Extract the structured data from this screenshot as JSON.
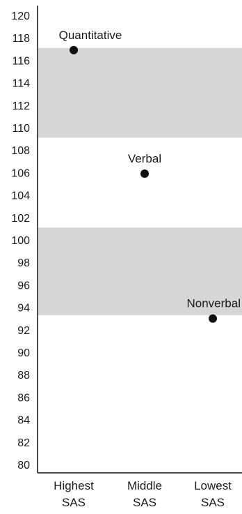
{
  "chart_data": {
    "type": "scatter",
    "title": "",
    "xlabel": "",
    "ylabel": "",
    "ylim": [
      80,
      120
    ],
    "yticks": [
      80,
      82,
      84,
      86,
      88,
      90,
      92,
      94,
      96,
      98,
      100,
      102,
      104,
      106,
      108,
      110,
      112,
      114,
      116,
      118,
      120
    ],
    "categories": [
      [
        "Highest",
        "SAS"
      ],
      [
        "Middle",
        "SAS"
      ],
      [
        "Lowest",
        "SAS"
      ]
    ],
    "points": [
      {
        "label": "Quantitative",
        "category_index": 0,
        "y": 116.9
      },
      {
        "label": "Verbal",
        "category_index": 1,
        "y": 105.9
      },
      {
        "label": "Nonverbal",
        "category_index": 2,
        "y": 93.0
      }
    ],
    "bands": [
      {
        "y0": 109.1,
        "y1": 117.1
      },
      {
        "y0": 93.3,
        "y1": 101.1
      }
    ],
    "band_color": "#d6d6d6",
    "point_color": "#111111",
    "grid": false,
    "legend": "none"
  }
}
